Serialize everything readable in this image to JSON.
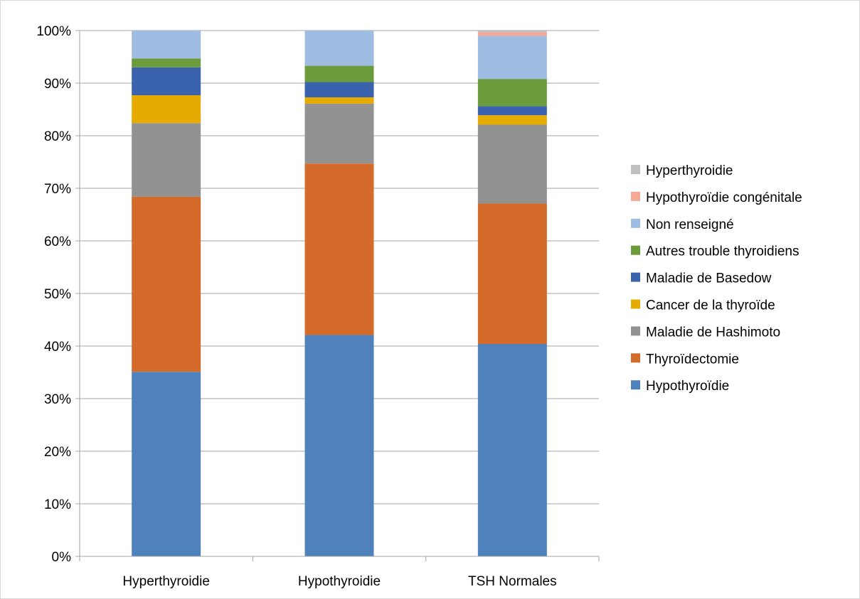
{
  "chart_data": {
    "type": "bar",
    "stacked": true,
    "normalized_percent": true,
    "title": "",
    "xlabel": "",
    "ylabel": "",
    "categories": [
      "Hyperthyroidie",
      "Hypothyroidie",
      "TSH Normales"
    ],
    "y_ticks": [
      "0%",
      "10%",
      "20%",
      "30%",
      "40%",
      "50%",
      "60%",
      "70%",
      "80%",
      "90%",
      "100%"
    ],
    "ylim": [
      0,
      100
    ],
    "grid": true,
    "legend_position": "right",
    "series": [
      {
        "name": "Hypothyroïdie",
        "color": "#4f81bd",
        "values": [
          35.1,
          42.1,
          40.4
        ]
      },
      {
        "name": "Thyroïdectomie",
        "color": "#d46b2a",
        "values": [
          33.3,
          32.6,
          26.7
        ]
      },
      {
        "name": "Maladie de Hashimoto",
        "color": "#929292",
        "values": [
          14.0,
          11.4,
          15.0
        ]
      },
      {
        "name": "Cancer de la thyroïde",
        "color": "#e6ab02",
        "values": [
          5.3,
          1.2,
          1.8
        ]
      },
      {
        "name": "Maladie de Basedow",
        "color": "#3a62ad",
        "values": [
          5.3,
          2.9,
          1.7
        ]
      },
      {
        "name": "Autres trouble thyroidiens",
        "color": "#6c9b3c",
        "values": [
          1.7,
          3.1,
          5.2
        ]
      },
      {
        "name": "Non renseigné",
        "color": "#9fbde2",
        "values": [
          5.3,
          6.7,
          8.2
        ]
      },
      {
        "name": "Hypothyroïdie congénitale",
        "color": "#f3a994",
        "values": [
          0,
          0,
          0.7
        ]
      },
      {
        "name": "Hyperthyroidie",
        "color": "#c0c0c0",
        "values": [
          0,
          0,
          0.3
        ]
      }
    ]
  }
}
